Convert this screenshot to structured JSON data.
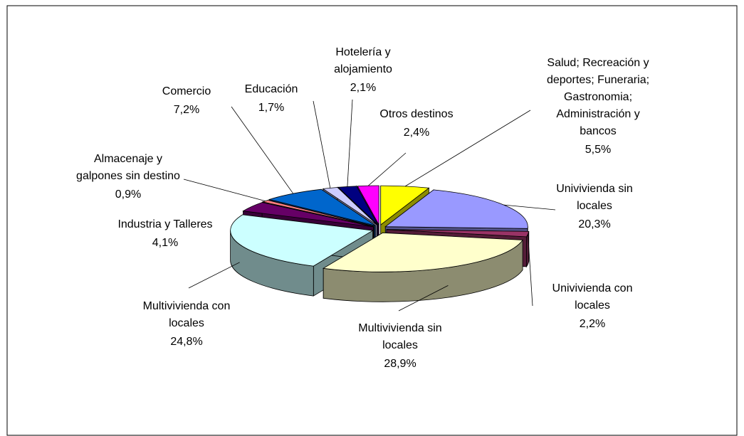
{
  "chart_data": {
    "type": "pie3d",
    "categories": [
      "Salud; Recreación y deportes; Funeraria; Gastronomia; Administración y bancos",
      "Univivienda sin locales",
      "Univivienda con locales",
      "Multivivienda sin locales",
      "Multivivienda con locales",
      "Industria y Talleres",
      "Almacenaje y galpones sin destino",
      "Comercio",
      "Educación",
      "Hotelería y alojamiento",
      "Otros destinos"
    ],
    "values": [
      5.5,
      20.3,
      2.2,
      28.9,
      24.8,
      4.1,
      0.9,
      7.2,
      1.7,
      2.1,
      2.4
    ],
    "value_labels": [
      "5,5%",
      "20,3%",
      "2,2%",
      "28,9%",
      "24,8%",
      "4,1%",
      "0,9%",
      "7,2%",
      "1,7%",
      "2,1%",
      "2,4%"
    ],
    "colors": [
      "#ffff00",
      "#9999ff",
      "#993366",
      "#ffffcc",
      "#ccffff",
      "#660066",
      "#ff8080",
      "#0066cc",
      "#ccccff",
      "#000080",
      "#ff00ff"
    ]
  }
}
